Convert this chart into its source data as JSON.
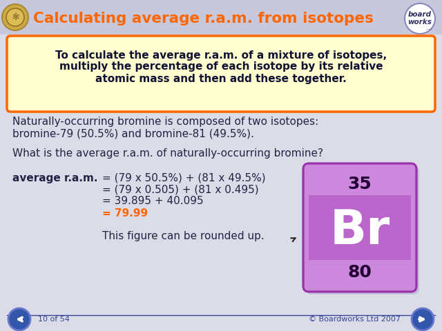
{
  "title": "Calculating average r.a.m. from isotopes",
  "bg_color": "#dcdce8",
  "header_bg": "#c8c8dc",
  "title_color": "#ff6600",
  "box_text_line1": "To calculate the average r.a.m. of a mixture of isotopes,",
  "box_text_line2": "multiply the percentage of each isotope by its relative",
  "box_text_line3": "atomic mass and then add these together.",
  "box_bg": "#ffffd0",
  "box_border": "#ff6600",
  "para1_line1": "Naturally-occurring bromine is composed of two isotopes:",
  "para1_line2": "bromine-79 (50.5%) and bromine-81 (49.5%).",
  "para2": "What is the average r.a.m. of naturally-occurring bromine?",
  "calc_label": "average r.a.m.",
  "calc_line1": "= (79 x 50.5%) + (81 x 49.5%)",
  "calc_line2": "= (79 x 0.505) + (81 x 0.495)",
  "calc_line3": "= 39.895 + 40.095",
  "calc_line4_prefix": "= ",
  "calc_line4_value": "79.99",
  "calc_line4_color": "#ff6600",
  "final_text": "This figure can be rounded up.",
  "element_symbol": "Br",
  "element_number": "35",
  "element_mass": "80",
  "element_bg_light": "#cc88dd",
  "element_bg_mid": "#bb66cc",
  "element_bg_dark": "#9933aa",
  "element_number_color": "#220033",
  "element_mass_color": "#220033",
  "footer_left": "10 of 54",
  "footer_right": "© Boardworks Ltd 2007",
  "text_color": "#222244",
  "nav_color": "#3355aa",
  "nav_border": "#6677cc"
}
